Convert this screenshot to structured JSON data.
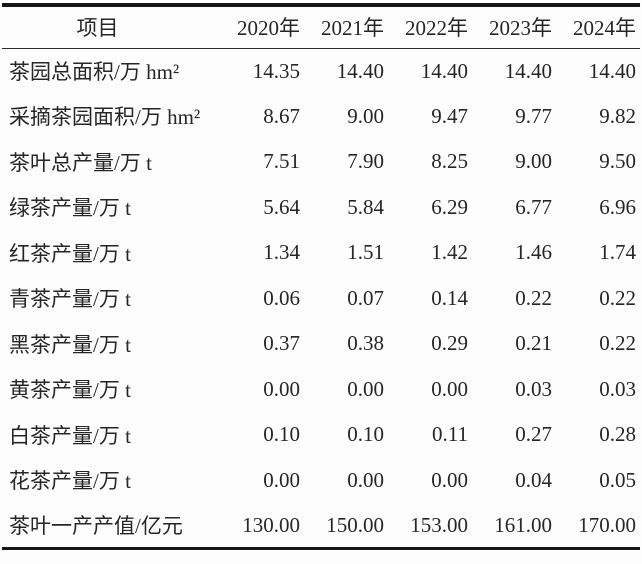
{
  "colors": {
    "background": "#fdfdfd",
    "text": "#262626",
    "rule": "#161616"
  },
  "table": {
    "header": {
      "item": "项目",
      "years": [
        "2020年",
        "2021年",
        "2022年",
        "2023年",
        "2024年"
      ]
    },
    "rows": [
      {
        "label": "茶园总面积/万 hm²",
        "values": [
          "14.35",
          "14.40",
          "14.40",
          "14.40",
          "14.40"
        ]
      },
      {
        "label": "采摘茶园面积/万 hm²",
        "values": [
          "8.67",
          "9.00",
          "9.47",
          "9.77",
          "9.82"
        ]
      },
      {
        "label": "茶叶总产量/万 t",
        "values": [
          "7.51",
          "7.90",
          "8.25",
          "9.00",
          "9.50"
        ]
      },
      {
        "label": "绿茶产量/万 t",
        "values": [
          "5.64",
          "5.84",
          "6.29",
          "6.77",
          "6.96"
        ]
      },
      {
        "label": "红茶产量/万 t",
        "values": [
          "1.34",
          "1.51",
          "1.42",
          "1.46",
          "1.74"
        ]
      },
      {
        "label": "青茶产量/万 t",
        "values": [
          "0.06",
          "0.07",
          "0.14",
          "0.22",
          "0.22"
        ]
      },
      {
        "label": "黑茶产量/万 t",
        "values": [
          "0.37",
          "0.38",
          "0.29",
          "0.21",
          "0.22"
        ]
      },
      {
        "label": "黄茶产量/万 t",
        "values": [
          "0.00",
          "0.00",
          "0.00",
          "0.03",
          "0.03"
        ]
      },
      {
        "label": "白茶产量/万 t",
        "values": [
          "0.10",
          "0.10",
          "0.11",
          "0.27",
          "0.28"
        ]
      },
      {
        "label": "花茶产量/万 t",
        "values": [
          "0.00",
          "0.00",
          "0.00",
          "0.04",
          "0.05"
        ]
      },
      {
        "label": "茶叶一产产值/亿元",
        "values": [
          "130.00",
          "150.00",
          "153.00",
          "161.00",
          "170.00"
        ]
      }
    ]
  },
  "chart_data": {
    "type": "table",
    "title": "",
    "columns": [
      "项目",
      "2020年",
      "2021年",
      "2022年",
      "2023年",
      "2024年"
    ],
    "rows": [
      [
        "茶园总面积/万 hm²",
        14.35,
        14.4,
        14.4,
        14.4,
        14.4
      ],
      [
        "采摘茶园面积/万 hm²",
        8.67,
        9.0,
        9.47,
        9.77,
        9.82
      ],
      [
        "茶叶总产量/万 t",
        7.51,
        7.9,
        8.25,
        9.0,
        9.5
      ],
      [
        "绿茶产量/万 t",
        5.64,
        5.84,
        6.29,
        6.77,
        6.96
      ],
      [
        "红茶产量/万 t",
        1.34,
        1.51,
        1.42,
        1.46,
        1.74
      ],
      [
        "青茶产量/万 t",
        0.06,
        0.07,
        0.14,
        0.22,
        0.22
      ],
      [
        "黑茶产量/万 t",
        0.37,
        0.38,
        0.29,
        0.21,
        0.22
      ],
      [
        "黄茶产量/万 t",
        0.0,
        0.0,
        0.0,
        0.03,
        0.03
      ],
      [
        "白茶产量/万 t",
        0.1,
        0.1,
        0.11,
        0.27,
        0.28
      ],
      [
        "花茶产量/万 t",
        0.0,
        0.0,
        0.0,
        0.04,
        0.05
      ],
      [
        "茶叶一产产值/亿元",
        130.0,
        150.0,
        153.0,
        161.0,
        170.0
      ]
    ]
  }
}
